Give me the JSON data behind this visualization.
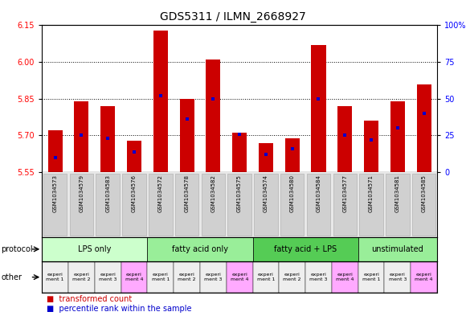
{
  "title": "GDS5311 / ILMN_2668927",
  "samples": [
    "GSM1034573",
    "GSM1034579",
    "GSM1034583",
    "GSM1034576",
    "GSM1034572",
    "GSM1034578",
    "GSM1034582",
    "GSM1034575",
    "GSM1034574",
    "GSM1034580",
    "GSM1034584",
    "GSM1034577",
    "GSM1034571",
    "GSM1034581",
    "GSM1034585"
  ],
  "transformed_count": [
    5.72,
    5.84,
    5.82,
    5.68,
    6.13,
    5.85,
    6.01,
    5.71,
    5.67,
    5.69,
    6.07,
    5.82,
    5.76,
    5.84,
    5.91
  ],
  "percentile_rank": [
    10,
    25,
    23,
    14,
    52,
    36,
    50,
    26,
    12,
    16,
    50,
    25,
    22,
    30,
    40
  ],
  "y_min": 5.55,
  "y_max": 6.15,
  "y_ticks_left": [
    5.55,
    5.7,
    5.85,
    6.0,
    6.15
  ],
  "y_ticks_right": [
    0,
    25,
    50,
    75,
    100
  ],
  "bar_color": "#cc0000",
  "dot_color": "#0000cc",
  "dot_size": 3.5,
  "bar_width": 0.55,
  "grid_lines": [
    5.7,
    5.85,
    6.0
  ],
  "protocol_groups": [
    {
      "label": "LPS only",
      "start": 0,
      "end": 4,
      "color": "#ccffcc"
    },
    {
      "label": "fatty acid only",
      "start": 4,
      "end": 8,
      "color": "#99ee99"
    },
    {
      "label": "fatty acid + LPS",
      "start": 8,
      "end": 12,
      "color": "#55cc55"
    },
    {
      "label": "unstimulated",
      "start": 12,
      "end": 15,
      "color": "#99ee99"
    }
  ],
  "other_labels": [
    "experi\nment 1",
    "experi\nment 2",
    "experi\nment 3",
    "experi\nment 4",
    "experi\nment 1",
    "experi\nment 2",
    "experi\nment 3",
    "experi\nment 4",
    "experi\nment 1",
    "experi\nment 2",
    "experi\nment 3",
    "experi\nment 4",
    "experi\nment 1",
    "experi\nment 3",
    "experi\nment 4"
  ],
  "other_colors": [
    "#eeeeee",
    "#eeeeee",
    "#eeeeee",
    "#ffaaff",
    "#eeeeee",
    "#eeeeee",
    "#eeeeee",
    "#ffaaff",
    "#eeeeee",
    "#eeeeee",
    "#eeeeee",
    "#ffaaff",
    "#eeeeee",
    "#eeeeee",
    "#ffaaff"
  ],
  "sample_bg": "#d0d0d0",
  "legend_red": "transformed count",
  "legend_blue": "percentile rank within the sample",
  "title_fontsize": 10,
  "axis_label_fontsize": 7,
  "sample_fontsize": 5,
  "protocol_fontsize": 7,
  "other_fontsize": 4.5,
  "legend_fontsize": 7
}
